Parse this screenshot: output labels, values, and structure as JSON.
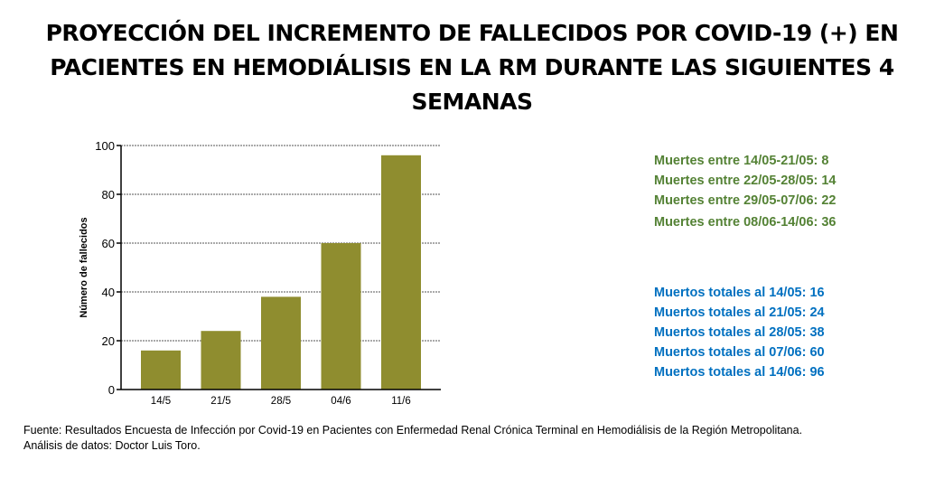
{
  "title_lines": [
    "PROYECCIÓN DEL INCREMENTO DE FALLECIDOS POR COVID-19 (+) EN",
    "PACIENTES EN HEMODIÁLISIS EN LA RM DURANTE LAS SIGUIENTES 4",
    "SEMANAS"
  ],
  "chart_data": {
    "type": "bar",
    "title": "",
    "xlabel": "",
    "ylabel": "Número de fallecidos",
    "categories": [
      "14/5",
      "21/5",
      "28/5",
      "04/6",
      "11/6"
    ],
    "values": [
      16,
      24,
      38,
      60,
      96
    ],
    "ylim": [
      0,
      100
    ],
    "yticks": [
      0,
      20,
      40,
      60,
      80,
      100
    ],
    "grid": "horizontal dotted",
    "bar_color": "#8f8d2f"
  },
  "weekly_deaths": [
    "Muertes entre 14/05-21/05: 8",
    "Muertes entre 22/05-28/05: 14",
    "Muertes entre 29/05-07/06: 22",
    "Muertes entre 08/06-14/06: 36"
  ],
  "total_deaths": [
    "Muertos totales al 14/05: 16",
    "Muertos totales al 21/05: 24",
    "Muertos totales al 28/05: 38",
    "Muertos totales al 07/06: 60",
    "Muertos totales al 14/06: 96"
  ],
  "colors": {
    "weekly": "#548235",
    "totals": "#0070c0"
  },
  "footer": {
    "source": "Fuente: Resultados Encuesta de Infección por Covid-19 en Pacientes con Enfermedad Renal Crónica Terminal en Hemodiálisis de la Región Metropolitana.",
    "analysis": "Análisis de datos: Doctor Luis Toro."
  }
}
